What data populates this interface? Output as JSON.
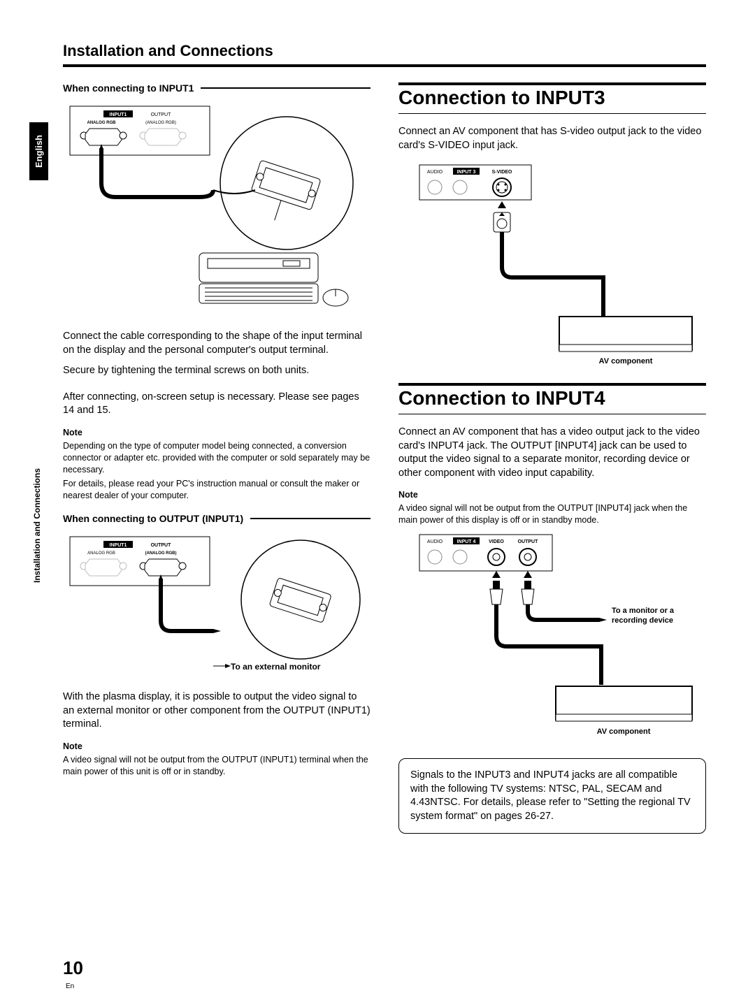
{
  "sidebar": {
    "language": "English",
    "section": "Installation and Connections"
  },
  "header": {
    "title": "Installation and Connections"
  },
  "left": {
    "sub1": "When connecting to INPUT1",
    "fig1": {
      "panel_labels": {
        "input1": "INPUT1",
        "output": "OUTPUT",
        "analog_rgb_l": "ANALOG RGB",
        "analog_rgb_r": "(ANALOG RGB)"
      }
    },
    "p1": "Connect the cable corresponding to the shape of the input terminal on the display and the personal computer's output terminal.",
    "p2": "Secure by tightening the terminal screws on both units.",
    "p3": "After connecting, on-screen setup is necessary. Please see pages 14 and 15.",
    "note1_label": "Note",
    "note1a": "Depending on the type of computer model being connected, a conversion connector or adapter etc. provided with the computer or sold separately may be necessary.",
    "note1b": "For details, please read your PC's instruction manual or consult the maker or nearest dealer of your computer.",
    "sub2": "When connecting to OUTPUT (INPUT1)",
    "fig2": {
      "panel_labels": {
        "input1": "INPUT1",
        "output": "OUTPUT",
        "analog_rgb_l": "ANALOG RGB",
        "analog_rgb_r": "(ANALOG RGB)"
      },
      "caption": "To an external monitor"
    },
    "p4": "With the plasma display, it is possible to output the video signal to an external monitor or other component from the OUTPUT (INPUT1) terminal.",
    "note2_label": "Note",
    "note2": "A video signal will not be output from the OUTPUT (INPUT1) terminal when the main power of this unit is off or in standby."
  },
  "right": {
    "h1": "Connection to INPUT3",
    "p1": "Connect an AV component that has S-video output jack to the video card's S-VIDEO input jack.",
    "fig3": {
      "panel_labels": {
        "audio": "AUDIO",
        "input3": "INPUT 3",
        "svideo": "S-VIDEO"
      },
      "caption": "AV component"
    },
    "h2": "Connection to INPUT4",
    "p2": "Connect an AV component that has a video output jack to the video card's INPUT4 jack. The OUTPUT [INPUT4] jack can be used to output the video signal to a separate monitor, recording device or other component with video input capability.",
    "note_label": "Note",
    "note": "A video signal will not be output from the OUTPUT [INPUT4] jack when the main power of this display is off or in standby mode.",
    "fig4": {
      "panel_labels": {
        "audio": "AUDIO",
        "input4": "INPUT 4",
        "video": "VIDEO",
        "output": "OUTPUT"
      },
      "caption_top": "To a monitor or a recording device",
      "caption_bottom": "AV component"
    },
    "infobox": "Signals to the INPUT3 and INPUT4 jacks are all compatible with the following TV systems: NTSC, PAL, SECAM and 4.43NTSC. For details, please refer to \"Setting the regional TV system format\" on pages 26-27."
  },
  "footer": {
    "page": "10",
    "lang": "En"
  },
  "colors": {
    "ink": "#000000",
    "paper": "#ffffff",
    "mute": "#888888"
  }
}
